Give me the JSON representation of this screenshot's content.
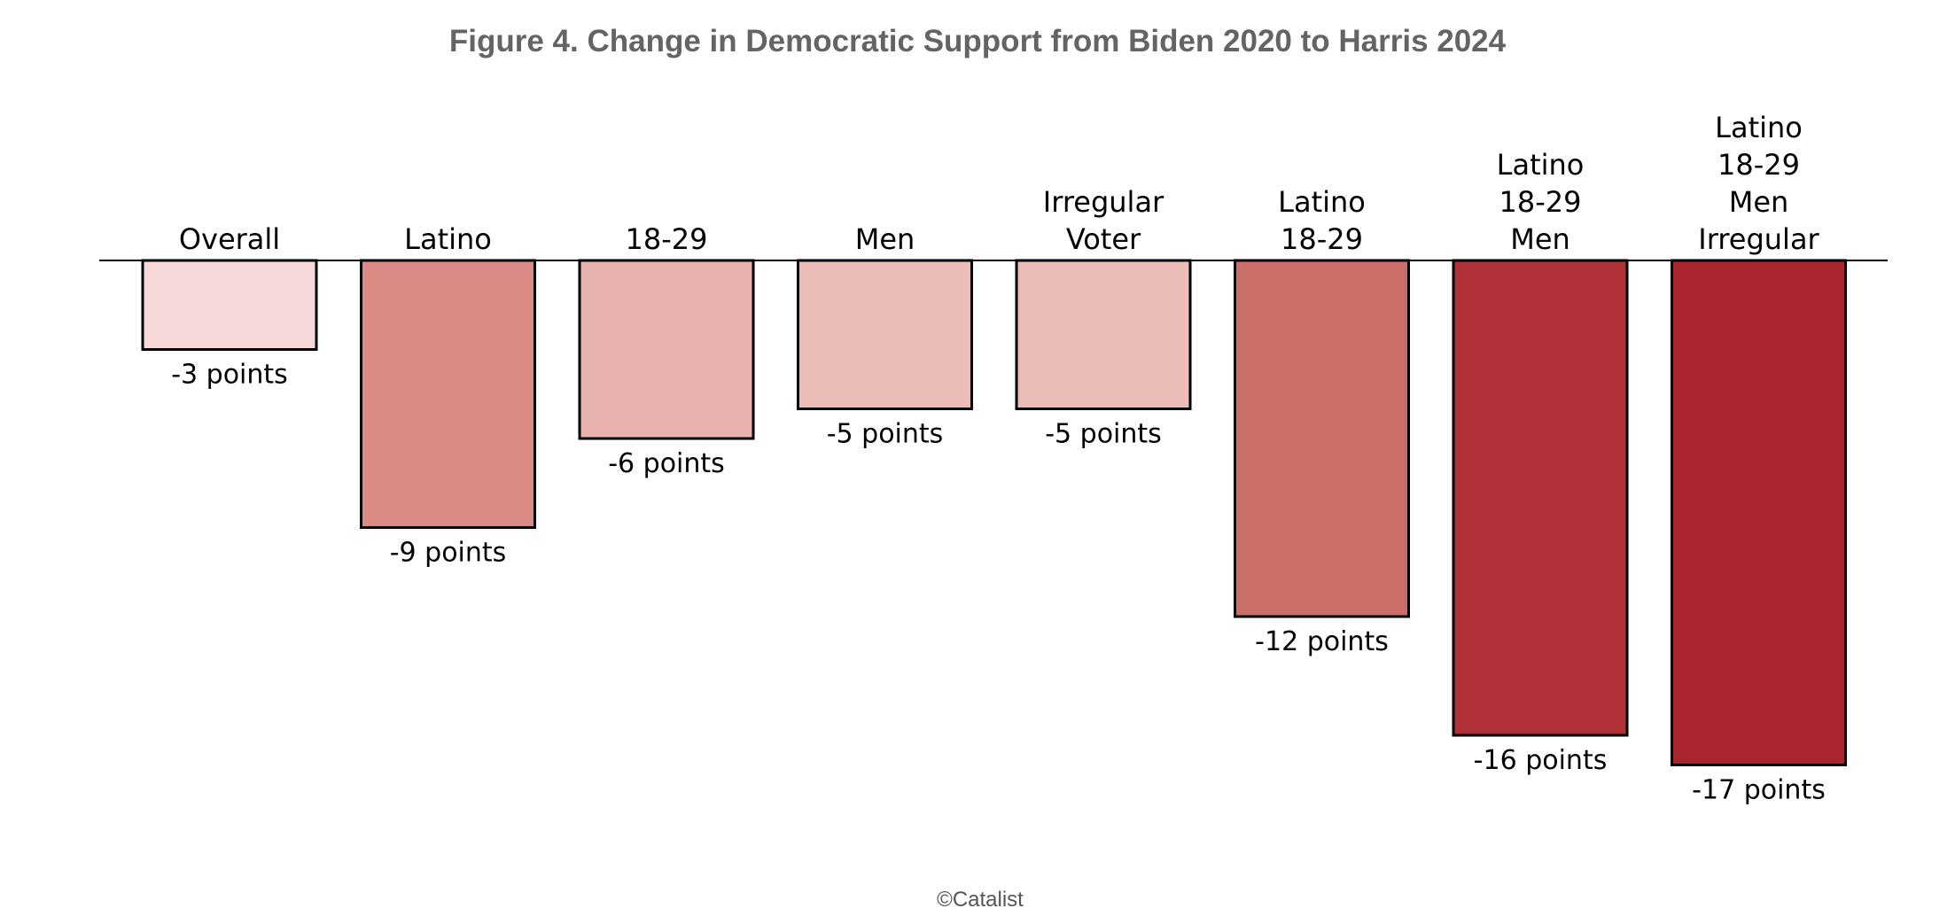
{
  "chart_data": {
    "type": "bar",
    "title": "Figure 4. Change in Democratic Support from Biden 2020 to Harris 2024",
    "categories": [
      [
        "Overall"
      ],
      [
        "Latino"
      ],
      [
        "18-29"
      ],
      [
        "Men"
      ],
      [
        "Irregular",
        "Voter"
      ],
      [
        "Latino",
        "18-29"
      ],
      [
        "Latino",
        "18-29",
        "Men"
      ],
      [
        "Latino",
        "18-29",
        "Men",
        "Irregular"
      ]
    ],
    "values": [
      -3,
      -9,
      -6,
      -5,
      -5,
      -12,
      -16,
      -17
    ],
    "value_labels": [
      "-3 points",
      "-9 points",
      "-6 points",
      "-5 points",
      "-5 points",
      "-12 points",
      "-16 points",
      "-17 points"
    ],
    "colors": [
      "#f6d8d8",
      "#db8a85",
      "#e8b2ae",
      "#ecbcb8",
      "#ecbcb8",
      "#cb6e68",
      "#b03238",
      "#aa2530"
    ],
    "xlabel": "",
    "ylabel": "",
    "ylim": [
      -17,
      0
    ],
    "grid": false,
    "legend": "none",
    "source": "©Catalist"
  }
}
